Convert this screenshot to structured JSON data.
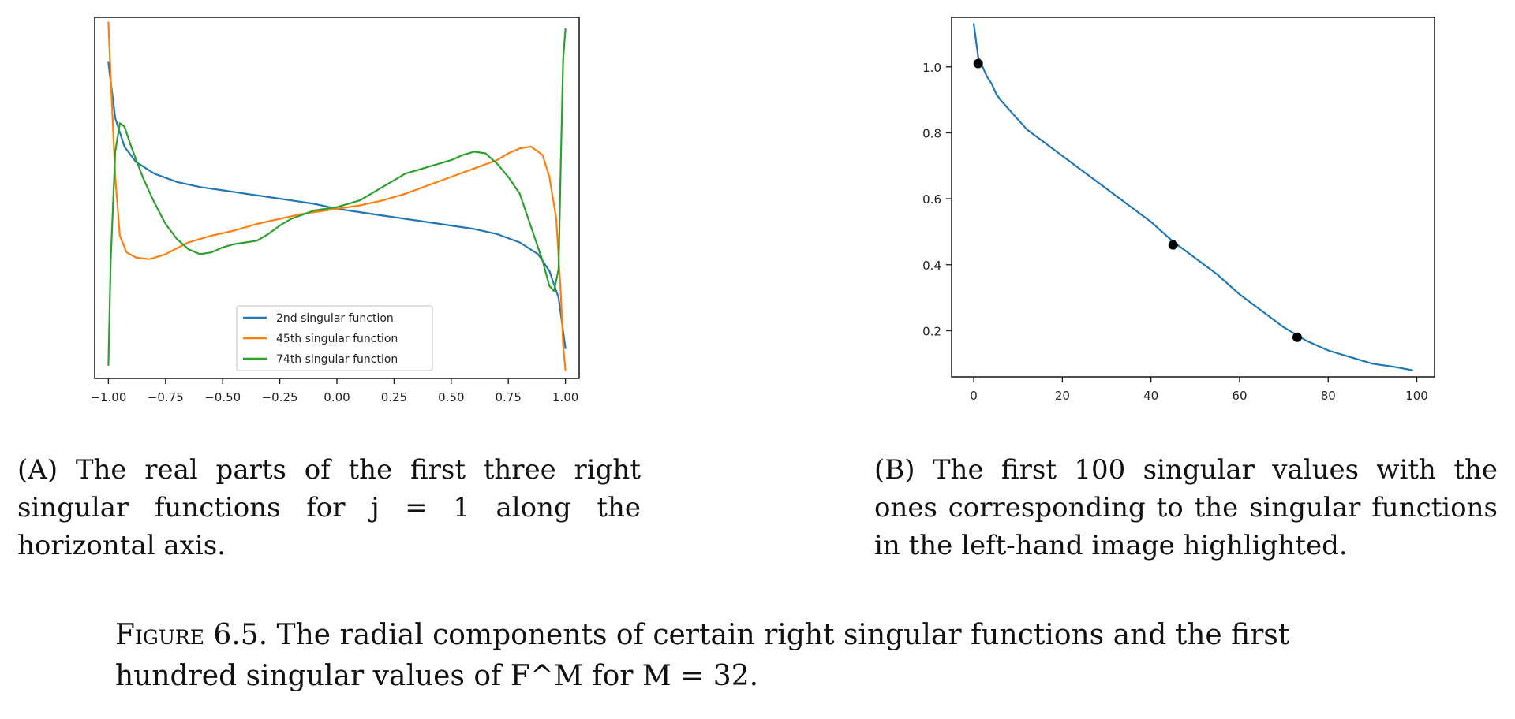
{
  "chart_data": [
    {
      "type": "line",
      "title": "",
      "xlabel": "",
      "ylabel": "",
      "xlim": [
        -1.06,
        1.06
      ],
      "ylim": [
        -1.0,
        1.15
      ],
      "grid": false,
      "legend_position": "lower-center",
      "xticks": [
        -1.0,
        -0.75,
        -0.5,
        -0.25,
        0.0,
        0.25,
        0.5,
        0.75,
        1.0
      ],
      "xtick_labels": [
        "−1.00",
        "−0.75",
        "−0.50",
        "−0.25",
        "0.00",
        "0.25",
        "0.50",
        "0.75",
        "1.00"
      ],
      "series": [
        {
          "name": "2nd singular function",
          "color": "#1f77b4",
          "x": [
            -1.0,
            -0.97,
            -0.93,
            -0.88,
            -0.8,
            -0.7,
            -0.6,
            -0.5,
            -0.4,
            -0.3,
            -0.2,
            -0.1,
            0.0,
            0.1,
            0.2,
            0.3,
            0.4,
            0.5,
            0.6,
            0.7,
            0.8,
            0.88,
            0.93,
            0.97,
            1.0
          ],
          "y": [
            0.88,
            0.55,
            0.38,
            0.29,
            0.22,
            0.17,
            0.14,
            0.12,
            0.1,
            0.08,
            0.06,
            0.04,
            0.01,
            -0.01,
            -0.03,
            -0.05,
            -0.07,
            -0.09,
            -0.11,
            -0.14,
            -0.19,
            -0.26,
            -0.36,
            -0.52,
            -0.82
          ]
        },
        {
          "name": "45th singular function",
          "color": "#ff7f0e",
          "x": [
            -1.0,
            -0.99,
            -0.97,
            -0.95,
            -0.92,
            -0.88,
            -0.82,
            -0.75,
            -0.65,
            -0.55,
            -0.45,
            -0.35,
            -0.25,
            -0.15,
            -0.05,
            0.0,
            0.1,
            0.2,
            0.3,
            0.4,
            0.5,
            0.6,
            0.7,
            0.75,
            0.8,
            0.85,
            0.9,
            0.93,
            0.96,
            0.98,
            0.99,
            1.0
          ],
          "y": [
            1.12,
            0.8,
            0.2,
            -0.15,
            -0.25,
            -0.28,
            -0.29,
            -0.26,
            -0.19,
            -0.15,
            -0.12,
            -0.08,
            -0.05,
            -0.02,
            0.0,
            0.01,
            0.03,
            0.06,
            0.1,
            0.15,
            0.2,
            0.25,
            0.3,
            0.34,
            0.37,
            0.38,
            0.33,
            0.2,
            -0.05,
            -0.5,
            -0.8,
            -0.95
          ]
        },
        {
          "name": "74th singular function",
          "color": "#2ca02c",
          "x": [
            -1.0,
            -0.99,
            -0.97,
            -0.95,
            -0.93,
            -0.9,
            -0.85,
            -0.8,
            -0.75,
            -0.7,
            -0.65,
            -0.6,
            -0.55,
            -0.5,
            -0.45,
            -0.4,
            -0.35,
            -0.3,
            -0.25,
            -0.2,
            -0.1,
            0.0,
            0.1,
            0.2,
            0.3,
            0.35,
            0.4,
            0.5,
            0.55,
            0.6,
            0.65,
            0.7,
            0.75,
            0.8,
            0.85,
            0.9,
            0.93,
            0.95,
            0.97,
            0.98,
            0.99,
            1.0
          ],
          "y": [
            -0.92,
            -0.3,
            0.35,
            0.52,
            0.5,
            0.38,
            0.2,
            0.05,
            -0.08,
            -0.17,
            -0.23,
            -0.26,
            -0.25,
            -0.22,
            -0.2,
            -0.19,
            -0.18,
            -0.14,
            -0.09,
            -0.05,
            0.0,
            0.02,
            0.06,
            0.14,
            0.22,
            0.24,
            0.26,
            0.3,
            0.33,
            0.35,
            0.34,
            0.28,
            0.2,
            0.1,
            -0.1,
            -0.3,
            -0.45,
            -0.48,
            -0.35,
            0.3,
            0.9,
            1.08
          ]
        }
      ]
    },
    {
      "type": "line",
      "title": "",
      "xlabel": "",
      "ylabel": "",
      "xlim": [
        -5,
        104
      ],
      "ylim": [
        0.06,
        1.15
      ],
      "grid": false,
      "xticks": [
        0,
        20,
        40,
        60,
        80,
        100
      ],
      "yticks": [
        0.2,
        0.4,
        0.6,
        0.8,
        1.0
      ],
      "series": [
        {
          "name": "",
          "color": "#1f77b4",
          "x": [
            0,
            1,
            2,
            3,
            4,
            5,
            6,
            8,
            10,
            12,
            15,
            20,
            25,
            30,
            35,
            40,
            45,
            50,
            55,
            60,
            65,
            70,
            75,
            80,
            85,
            90,
            95,
            99
          ],
          "y": [
            1.13,
            1.03,
            1.0,
            0.97,
            0.95,
            0.92,
            0.9,
            0.87,
            0.84,
            0.81,
            0.78,
            0.73,
            0.68,
            0.63,
            0.58,
            0.53,
            0.47,
            0.42,
            0.37,
            0.31,
            0.26,
            0.21,
            0.17,
            0.14,
            0.12,
            0.1,
            0.09,
            0.08
          ]
        }
      ],
      "highlighted_points": [
        {
          "x": 1,
          "y": 1.01
        },
        {
          "x": 45,
          "y": 0.46
        },
        {
          "x": 73,
          "y": 0.18
        }
      ]
    }
  ],
  "captions": {
    "a_label": "(A)",
    "a_text": " The real parts of the first three right singular functions for j = 1 along the horizontal axis.",
    "b_label": "(B)",
    "b_text": " The first 100 singular values with the ones corresponding to the singular functions in the left-hand image highlighted.",
    "figure_label": "Figure 6.5.",
    "figure_text": " The radial components of certain right singular functions and the first hundred singular values of F^M for M = 32."
  }
}
